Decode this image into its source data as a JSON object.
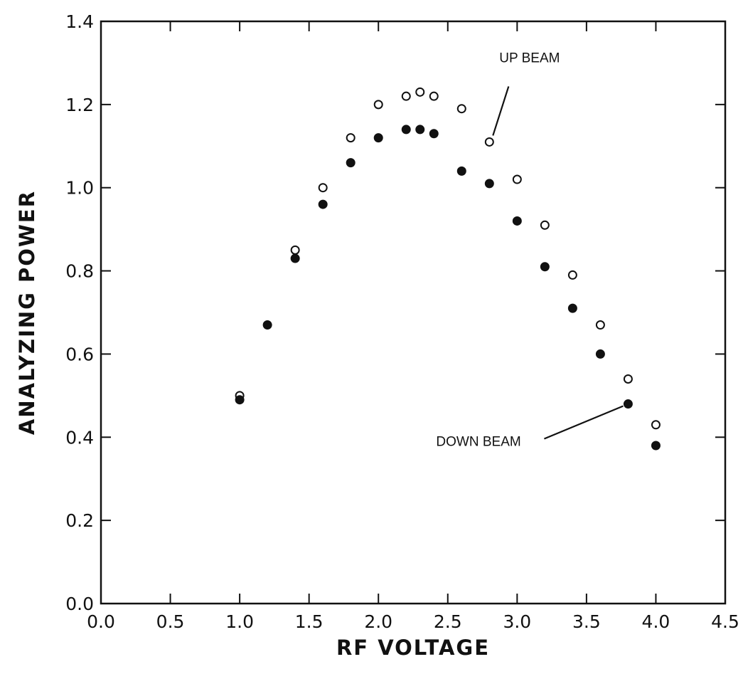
{
  "chart_data": {
    "type": "scatter",
    "title": "",
    "xlabel": "RF VOLTAGE",
    "ylabel": "ANALYZING POWER",
    "xlim": [
      0.0,
      4.5
    ],
    "ylim": [
      0.0,
      1.4
    ],
    "x_ticks": [
      "0.0",
      "0.5",
      "1.0",
      "1.5",
      "2.0",
      "2.5",
      "3.0",
      "3.5",
      "4.0",
      "4.5"
    ],
    "y_ticks": [
      "0.0",
      "0.2",
      "0.4",
      "0.6",
      "0.8",
      "1.0",
      "1.2",
      "1.4"
    ],
    "grid": false,
    "series": [
      {
        "name": "UP BEAM",
        "marker": "open-circle",
        "points": [
          {
            "x": 1.0,
            "y": 0.5
          },
          {
            "x": 1.4,
            "y": 0.85
          },
          {
            "x": 1.6,
            "y": 1.0
          },
          {
            "x": 1.8,
            "y": 1.12
          },
          {
            "x": 2.0,
            "y": 1.2
          },
          {
            "x": 2.2,
            "y": 1.22
          },
          {
            "x": 2.3,
            "y": 1.23
          },
          {
            "x": 2.4,
            "y": 1.22
          },
          {
            "x": 2.6,
            "y": 1.19
          },
          {
            "x": 2.8,
            "y": 1.11
          },
          {
            "x": 3.0,
            "y": 1.02
          },
          {
            "x": 3.2,
            "y": 0.91
          },
          {
            "x": 3.4,
            "y": 0.79
          },
          {
            "x": 3.6,
            "y": 0.67
          },
          {
            "x": 3.8,
            "y": 0.54
          },
          {
            "x": 4.0,
            "y": 0.43
          }
        ]
      },
      {
        "name": "DOWN BEAM",
        "marker": "filled-circle",
        "points": [
          {
            "x": 1.0,
            "y": 0.49
          },
          {
            "x": 1.2,
            "y": 0.67
          },
          {
            "x": 1.4,
            "y": 0.83
          },
          {
            "x": 1.6,
            "y": 0.96
          },
          {
            "x": 1.8,
            "y": 1.06
          },
          {
            "x": 2.0,
            "y": 1.12
          },
          {
            "x": 2.2,
            "y": 1.14
          },
          {
            "x": 2.3,
            "y": 1.14
          },
          {
            "x": 2.4,
            "y": 1.13
          },
          {
            "x": 2.6,
            "y": 1.04
          },
          {
            "x": 2.8,
            "y": 1.01
          },
          {
            "x": 3.0,
            "y": 0.92
          },
          {
            "x": 3.2,
            "y": 0.81
          },
          {
            "x": 3.4,
            "y": 0.71
          },
          {
            "x": 3.6,
            "y": 0.6
          },
          {
            "x": 3.8,
            "y": 0.48
          },
          {
            "x": 4.0,
            "y": 0.38
          }
        ]
      }
    ],
    "annotations": [
      {
        "text": "UP BEAM",
        "points_to": {
          "x": 2.8,
          "y": 1.11
        }
      },
      {
        "text": "DOWN BEAM",
        "points_to": {
          "x": 3.8,
          "y": 0.48
        }
      }
    ],
    "colors": {
      "ink": "#111111",
      "background": "#ffffff"
    }
  }
}
